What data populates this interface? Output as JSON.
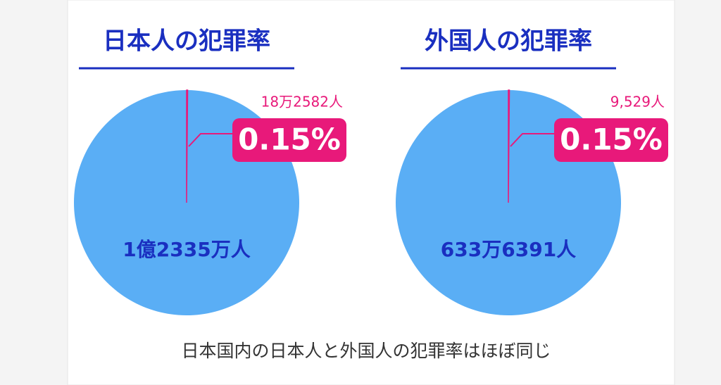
{
  "chart_data": [
    {
      "type": "pie",
      "title": "日本人の犯罪率",
      "categories": [
        "1億2335万人",
        "18万2582人"
      ],
      "values": [
        99.85,
        0.15
      ],
      "value_labels": [
        null,
        "0.15%"
      ],
      "colors": [
        "#5aaef5",
        "#e8197a"
      ]
    },
    {
      "type": "pie",
      "title": "外国人の犯罪率",
      "categories": [
        "633万6391人",
        "9,529人"
      ],
      "values": [
        99.85,
        0.15
      ],
      "value_labels": [
        null,
        "0.15%"
      ],
      "colors": [
        "#5aaef5",
        "#e8197a"
      ]
    }
  ],
  "caption": "日本国内の日本人と外国人の犯罪率はほぼ同じ"
}
